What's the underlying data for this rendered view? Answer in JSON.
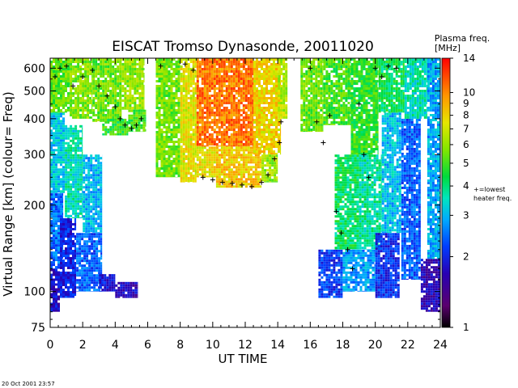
{
  "chart_data": {
    "type": "heatmap",
    "title": "EISCAT Tromso Dynasonde,  20011020",
    "xlabel": "UT TIME",
    "ylabel": "Virtual Range [km]   (colour= Freq)",
    "x_range": [
      0,
      24
    ],
    "x_ticks": [
      0,
      2,
      4,
      6,
      8,
      10,
      12,
      14,
      16,
      18,
      20,
      22,
      24
    ],
    "y_scale": "log",
    "y_range": [
      75,
      650
    ],
    "y_ticks": [
      75,
      100,
      200,
      300,
      400,
      500,
      600
    ],
    "colorbar": {
      "title_line1": "Plasma freq.",
      "title_line2": "[MHz]",
      "range": [
        1,
        14
      ],
      "ticks": [
        1,
        2,
        3,
        4,
        5,
        6,
        7,
        8,
        9,
        10,
        14
      ],
      "marker_label_line1": "+=lowest",
      "marker_label_line2": "heater freq."
    },
    "blocks": [
      {
        "t0": 0.0,
        "t1": 0.6,
        "h0": 85,
        "h1": 120,
        "f": 1.8
      },
      {
        "t0": 0.0,
        "t1": 0.8,
        "h0": 120,
        "h1": 220,
        "f": 2.5
      },
      {
        "t0": 0.0,
        "t1": 0.9,
        "h0": 220,
        "h1": 420,
        "f": 3.2
      },
      {
        "t0": 0.0,
        "t1": 1.2,
        "h0": 420,
        "h1": 650,
        "f": 5.3
      },
      {
        "t0": 0.6,
        "t1": 1.6,
        "h0": 95,
        "h1": 180,
        "f": 2.0
      },
      {
        "t0": 0.9,
        "t1": 2.0,
        "h0": 180,
        "h1": 380,
        "f": 3.6
      },
      {
        "t0": 1.2,
        "t1": 2.6,
        "h0": 400,
        "h1": 650,
        "f": 5.8
      },
      {
        "t0": 1.6,
        "t1": 3.2,
        "h0": 100,
        "h1": 160,
        "f": 2.4
      },
      {
        "t0": 2.0,
        "t1": 3.2,
        "h0": 160,
        "h1": 300,
        "f": 3.0
      },
      {
        "t0": 2.6,
        "t1": 4.4,
        "h0": 390,
        "h1": 650,
        "f": 5.5
      },
      {
        "t0": 3.2,
        "t1": 4.8,
        "h0": 350,
        "h1": 400,
        "f": 4.8
      },
      {
        "t0": 3.0,
        "t1": 4.0,
        "h0": 100,
        "h1": 115,
        "f": 1.9
      },
      {
        "t0": 4.0,
        "t1": 5.4,
        "h0": 95,
        "h1": 108,
        "f": 1.7
      },
      {
        "t0": 4.4,
        "t1": 5.8,
        "h0": 430,
        "h1": 650,
        "f": 6.0
      },
      {
        "t0": 4.8,
        "t1": 5.9,
        "h0": 360,
        "h1": 430,
        "f": 5.1
      },
      {
        "t0": 6.5,
        "t1": 8.0,
        "h0": 250,
        "h1": 650,
        "f": 5.6
      },
      {
        "t0": 8.0,
        "t1": 9.0,
        "h0": 240,
        "h1": 650,
        "f": 7.4
      },
      {
        "t0": 9.0,
        "t1": 10.2,
        "h0": 250,
        "h1": 320,
        "f": 7.6
      },
      {
        "t0": 9.0,
        "t1": 12.5,
        "h0": 320,
        "h1": 650,
        "f": 10.5
      },
      {
        "t0": 10.2,
        "t1": 13.0,
        "h0": 230,
        "h1": 320,
        "f": 8.3
      },
      {
        "t0": 12.5,
        "t1": 14.2,
        "h0": 300,
        "h1": 650,
        "f": 8.0
      },
      {
        "t0": 13.0,
        "t1": 14.0,
        "h0": 240,
        "h1": 300,
        "f": 6.2
      },
      {
        "t0": 14.0,
        "t1": 14.6,
        "h0": 400,
        "h1": 650,
        "f": 6.5
      },
      {
        "t0": 15.4,
        "t1": 16.8,
        "h0": 360,
        "h1": 650,
        "f": 5.5
      },
      {
        "t0": 16.8,
        "t1": 18.5,
        "h0": 380,
        "h1": 650,
        "f": 5.0
      },
      {
        "t0": 16.5,
        "t1": 18.0,
        "h0": 95,
        "h1": 140,
        "f": 2.2
      },
      {
        "t0": 17.5,
        "t1": 19.0,
        "h0": 140,
        "h1": 300,
        "f": 4.2
      },
      {
        "t0": 18.5,
        "t1": 20.2,
        "h0": 300,
        "h1": 650,
        "f": 4.8
      },
      {
        "t0": 18.0,
        "t1": 20.0,
        "h0": 100,
        "h1": 140,
        "f": 2.8
      },
      {
        "t0": 19.0,
        "t1": 20.4,
        "h0": 140,
        "h1": 300,
        "f": 3.8
      },
      {
        "t0": 20.0,
        "t1": 21.5,
        "h0": 95,
        "h1": 160,
        "f": 2.1
      },
      {
        "t0": 20.4,
        "t1": 21.6,
        "h0": 160,
        "h1": 420,
        "f": 3.1
      },
      {
        "t0": 20.2,
        "t1": 21.8,
        "h0": 420,
        "h1": 650,
        "f": 4.3
      },
      {
        "t0": 21.6,
        "t1": 22.8,
        "h0": 110,
        "h1": 400,
        "f": 2.4
      },
      {
        "t0": 21.8,
        "t1": 23.2,
        "h0": 400,
        "h1": 650,
        "f": 3.6
      },
      {
        "t0": 22.8,
        "t1": 24.0,
        "h0": 85,
        "h1": 130,
        "f": 1.7
      },
      {
        "t0": 23.2,
        "t1": 24.0,
        "h0": 130,
        "h1": 650,
        "f": 2.9
      }
    ],
    "lowest_heater_freq_markers": [
      {
        "t": 0.3,
        "h": 560
      },
      {
        "t": 0.6,
        "h": 600
      },
      {
        "t": 1.0,
        "h": 610
      },
      {
        "t": 1.4,
        "h": 520
      },
      {
        "t": 2.0,
        "h": 560
      },
      {
        "t": 2.6,
        "h": 590
      },
      {
        "t": 3.0,
        "h": 520
      },
      {
        "t": 3.5,
        "h": 480
      },
      {
        "t": 4.0,
        "h": 440
      },
      {
        "t": 4.3,
        "h": 400
      },
      {
        "t": 4.6,
        "h": 380
      },
      {
        "t": 5.0,
        "h": 370
      },
      {
        "t": 5.3,
        "h": 380
      },
      {
        "t": 5.6,
        "h": 400
      },
      {
        "t": 6.8,
        "h": 610
      },
      {
        "t": 8.3,
        "h": 620
      },
      {
        "t": 8.8,
        "h": 590
      },
      {
        "t": 9.4,
        "h": 250
      },
      {
        "t": 10.0,
        "h": 245
      },
      {
        "t": 10.6,
        "h": 240
      },
      {
        "t": 11.2,
        "h": 238
      },
      {
        "t": 11.8,
        "h": 235
      },
      {
        "t": 12.4,
        "h": 232
      },
      {
        "t": 13.0,
        "h": 240
      },
      {
        "t": 13.4,
        "h": 255
      },
      {
        "t": 13.8,
        "h": 290
      },
      {
        "t": 14.1,
        "h": 330
      },
      {
        "t": 14.2,
        "h": 390
      },
      {
        "t": 16.0,
        "h": 600
      },
      {
        "t": 16.4,
        "h": 390
      },
      {
        "t": 16.8,
        "h": 330
      },
      {
        "t": 17.2,
        "h": 410
      },
      {
        "t": 17.6,
        "h": 190
      },
      {
        "t": 17.9,
        "h": 160
      },
      {
        "t": 18.3,
        "h": 140
      },
      {
        "t": 18.6,
        "h": 120
      },
      {
        "t": 19.0,
        "h": 450
      },
      {
        "t": 19.3,
        "h": 300
      },
      {
        "t": 19.6,
        "h": 250
      },
      {
        "t": 20.0,
        "h": 600
      },
      {
        "t": 20.4,
        "h": 560
      },
      {
        "t": 20.8,
        "h": 610
      },
      {
        "t": 21.3,
        "h": 600
      }
    ]
  },
  "footer": {
    "timestamp": "20 Oct 2001 23:57"
  }
}
